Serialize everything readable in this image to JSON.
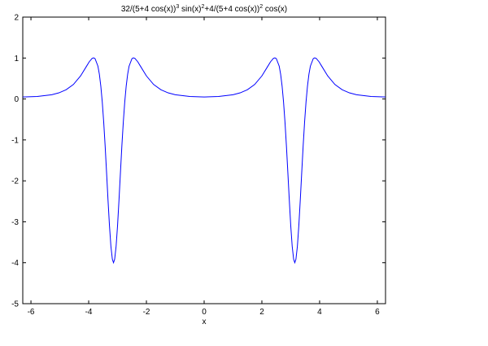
{
  "chart_data": {
    "type": "line",
    "title": [
      "32/(5+4 cos(x))",
      "3",
      " sin(x)",
      "2",
      "+4/(5+4 cos(x))",
      "2",
      " cos(x)"
    ],
    "xlabel": "x",
    "x": [
      -6.28,
      -5.78,
      -5.28,
      -5.03,
      -4.78,
      -4.53,
      -4.28,
      -4.08,
      -3.98,
      -3.88,
      -3.83,
      -3.78,
      -3.68,
      -3.63,
      -3.58,
      -3.53,
      -3.48,
      -3.43,
      -3.38,
      -3.33,
      -3.28,
      -3.23,
      -3.18,
      -3.14,
      -3.1,
      -3.05,
      -3,
      -2.95,
      -2.9,
      -2.85,
      -2.8,
      -2.75,
      -2.7,
      -2.65,
      -2.6,
      -2.5,
      -2.45,
      -2.4,
      -2.3,
      -2.2,
      -2,
      -1.75,
      -1.5,
      -1.25,
      -1,
      -0.5,
      0,
      0.5,
      1,
      1.25,
      1.5,
      1.75,
      2,
      2.2,
      2.3,
      2.4,
      2.45,
      2.5,
      2.6,
      2.65,
      2.7,
      2.75,
      2.8,
      2.85,
      2.9,
      2.95,
      3,
      3.05,
      3.1,
      3.14,
      3.18,
      3.23,
      3.28,
      3.33,
      3.38,
      3.43,
      3.48,
      3.53,
      3.58,
      3.63,
      3.68,
      3.78,
      3.83,
      3.88,
      3.98,
      4.08,
      4.28,
      4.53,
      4.78,
      5.03,
      5.28,
      5.78,
      6.28
    ],
    "series": [
      {
        "color": "#0000ff",
        "values": [
          0.049,
          0.06,
          0.104,
          0.15,
          0.226,
          0.354,
          0.563,
          0.793,
          0.909,
          0.992,
          1.005,
          0.986,
          0.802,
          0.604,
          0.317,
          -0.07,
          -0.561,
          -1.143,
          -1.802,
          -2.471,
          -3.095,
          -3.598,
          -3.915,
          -4.0,
          -3.915,
          -3.598,
          -3.095,
          -2.471,
          -1.802,
          -1.143,
          -0.561,
          -0.07,
          0.317,
          0.604,
          0.802,
          0.986,
          1.005,
          0.992,
          0.909,
          0.793,
          0.563,
          0.354,
          0.226,
          0.15,
          0.104,
          0.06,
          0.049,
          0.06,
          0.104,
          0.15,
          0.226,
          0.354,
          0.563,
          0.793,
          0.909,
          0.992,
          1.005,
          0.986,
          0.802,
          0.604,
          0.317,
          -0.07,
          -0.561,
          -1.143,
          -1.802,
          -2.471,
          -3.095,
          -3.598,
          -3.915,
          -4.0,
          -3.915,
          -3.598,
          -3.095,
          -2.471,
          -1.802,
          -1.143,
          -0.561,
          -0.07,
          0.317,
          0.604,
          0.802,
          0.986,
          1.005,
          0.992,
          0.909,
          0.793,
          0.563,
          0.354,
          0.226,
          0.15,
          0.104,
          0.06,
          0.049
        ]
      }
    ],
    "xlim": [
      -6.2832,
      6.2832
    ],
    "xticks": [
      -6,
      -4,
      -2,
      0,
      2,
      4,
      6
    ],
    "ylim": [
      -5,
      2
    ],
    "yticks": [
      -5,
      -4,
      -3,
      -2,
      -1,
      0,
      1,
      2
    ],
    "grid": false
  }
}
